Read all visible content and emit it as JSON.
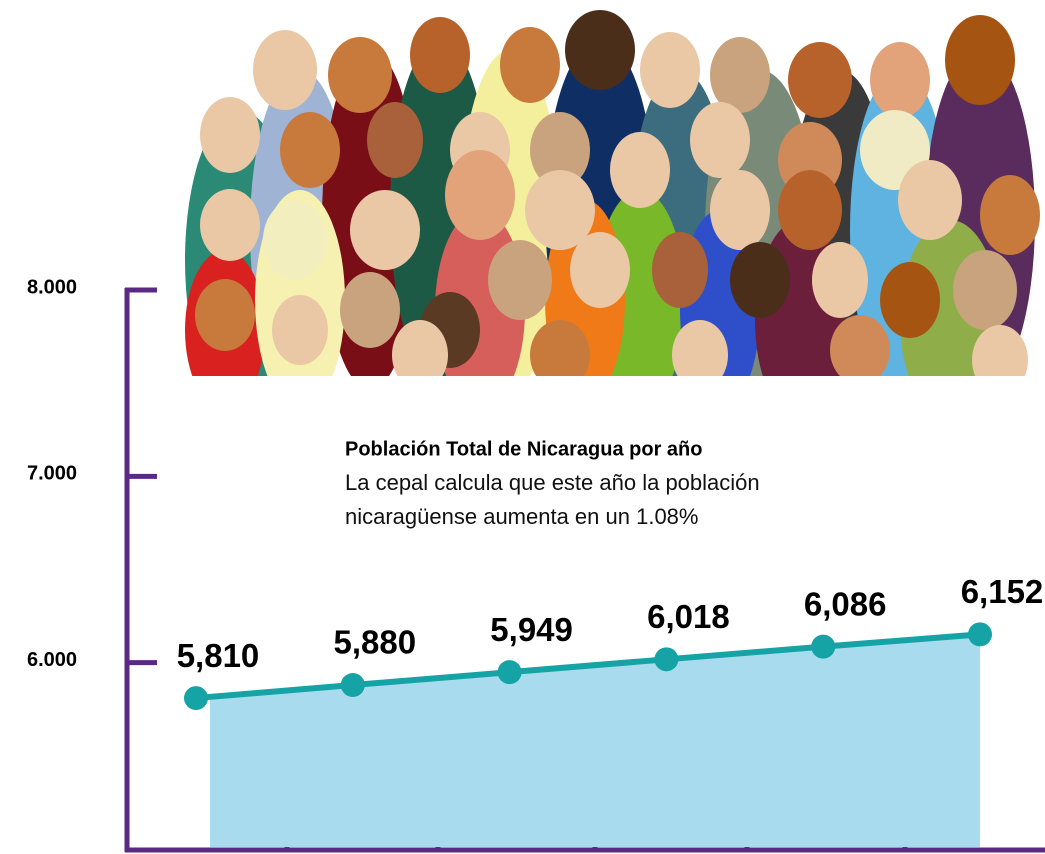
{
  "chart_data": {
    "type": "area-line",
    "title": "Población Total de Nicaragua por año",
    "subtitle": [
      "La cepal calcula que este año la población",
      "nicaragüense aumenta en un 1.08%"
    ],
    "categories": [
      null,
      null,
      null,
      null,
      null,
      null
    ],
    "values": [
      5810,
      5880,
      5949,
      6018,
      6086,
      6152
    ],
    "value_labels": [
      "5,810",
      "5,880",
      "5,949",
      "6,018",
      "6,086",
      "6,152"
    ],
    "color": "#16a3a6",
    "fill": "#a8dbee",
    "axis_color": "#5a2a82",
    "ylim": [
      5000,
      8000
    ],
    "yticks": [
      {
        "value": 6000,
        "label": "6.000"
      },
      {
        "value": 7000,
        "label": "7.000"
      },
      {
        "value": 8000,
        "label": "8.000"
      }
    ]
  }
}
